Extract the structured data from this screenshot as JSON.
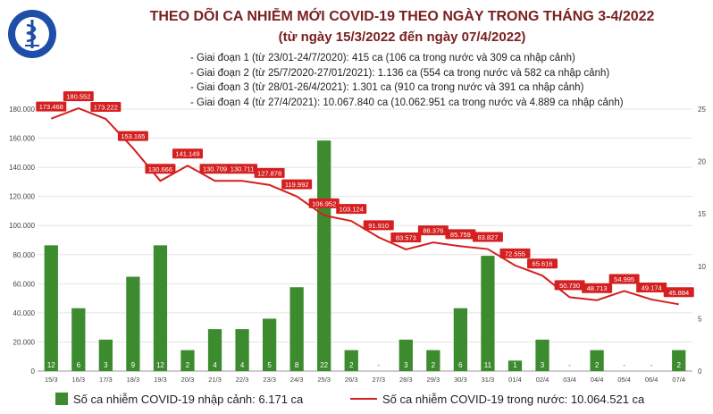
{
  "header": {
    "title": "THEO DÕI CA NHIỄM MỚI COVID-19 THEO NGÀY TRONG THÁNG 3-4/2022",
    "subtitle": "(từ ngày 15/3/2022 đến ngày 07/4/2022)",
    "phases": [
      "- Giai đoạn 1 (từ 23/01-24/7/2020): 415 ca (106 ca trong nước và 309 ca nhập cảnh)",
      "- Giai đoạn 2 (từ 25/7/2020-27/01/2021): 1.136 ca (554 ca trong nước và 582 ca nhập cảnh)",
      "- Giai đoạn 3 (từ 28/01-26/4/2021): 1.301 ca (910 ca trong nước và 391 ca nhập cảnh)",
      "- Giai đoạn 4 (từ 27/4/2021): 10.067.840 ca (10.062.951 ca trong nước và 4.889 ca nhập cảnh)"
    ]
  },
  "logo": {
    "text": "BỘ Y TẾ",
    "color": "#1e4ea8"
  },
  "colors": {
    "bar": "#3d8b2f",
    "line": "#d42020",
    "label_bg": "#d42020",
    "grid": "#e4e4e4"
  },
  "chart_data": {
    "type": "bar+line",
    "categories": [
      "15/3",
      "16/3",
      "17/3",
      "18/3",
      "19/3",
      "20/3",
      "21/3",
      "22/3",
      "23/3",
      "24/3",
      "25/3",
      "26/3",
      "27/3",
      "28/3",
      "29/3",
      "30/3",
      "31/3",
      "01/4",
      "02/4",
      "03/4",
      "04/4",
      "05/4",
      "06/4",
      "07/4"
    ],
    "y_left": {
      "min": 0,
      "max": 180000,
      "step": 20000,
      "tick_labels": [
        "0",
        "20.000",
        "40.000",
        "60.000",
        "80.000",
        "100.000",
        "120.000",
        "140.000",
        "160.000",
        "180.000"
      ]
    },
    "y_right": {
      "min": 0,
      "max": 25,
      "step": 5,
      "tick_labels": [
        "0",
        "5",
        "10",
        "15",
        "20",
        "25"
      ]
    },
    "grid": true,
    "series": [
      {
        "name": "Số ca nhiễm COVID-19 nhập cảnh: 6.171 ca",
        "type": "bar",
        "axis": "right",
        "values": [
          12,
          6,
          3,
          9,
          12,
          2,
          4,
          4,
          5,
          8,
          22,
          2,
          0,
          3,
          2,
          6,
          11,
          1,
          3,
          0,
          2,
          0,
          0,
          2
        ],
        "labels": [
          "12",
          "6",
          "3",
          "9",
          "12",
          "2",
          "4",
          "4",
          "5",
          "8",
          "22",
          "2",
          "-",
          "3",
          "2",
          "6",
          "11",
          "1",
          "3",
          "-",
          "2",
          "-",
          "-",
          "2"
        ]
      },
      {
        "name": "Số ca nhiễm COVID-19 trong nước: 10.064.521 ca",
        "type": "line",
        "axis": "left",
        "values": [
          173468,
          180552,
          173222,
          153165,
          130666,
          141149,
          130709,
          130711,
          127878,
          119992,
          106952,
          103124,
          91910,
          83573,
          88376,
          85759,
          83827,
          72555,
          65616,
          50730,
          48713,
          54995,
          49174,
          45884
        ],
        "labels": [
          "173.468",
          "180.552",
          "173.222",
          "153.165",
          "130.666",
          "141.149",
          "130.709",
          "130.711",
          "127.878",
          "119.992",
          "106.952",
          "103.124",
          "91.910",
          "83.573",
          "88.376",
          "85.759",
          "83.827",
          "72.555",
          "65.616",
          "50.730",
          "48.713",
          "54.995",
          "49.174",
          "45.884"
        ]
      }
    ],
    "legend_position": "bottom"
  }
}
